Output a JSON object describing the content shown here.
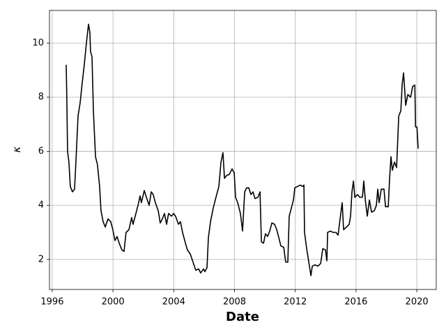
{
  "chart_data": {
    "type": "line",
    "xlabel": "Date",
    "ylabel": "κ",
    "color": "#000000",
    "grid": true,
    "xlim": [
      1995.82,
      2021.28
    ],
    "xticks": [
      1996,
      2000,
      2004,
      2008,
      2012,
      2016,
      2020
    ],
    "ylim": [
      0.89,
      11.21
    ],
    "yticks": [
      2,
      4,
      6,
      8,
      10
    ],
    "x": [
      1996.92,
      1996.96,
      1997.01,
      1997.1,
      1997.19,
      1997.33,
      1997.47,
      1997.56,
      1997.7,
      1997.84,
      1997.97,
      1998.11,
      1998.25,
      1998.39,
      1998.48,
      1998.52,
      1998.62,
      1998.71,
      1998.85,
      1998.98,
      1999.12,
      1999.21,
      1999.35,
      1999.49,
      1999.67,
      1999.85,
      1999.99,
      2000.13,
      2000.27,
      2000.41,
      2000.59,
      2000.73,
      2000.86,
      2001.05,
      2001.23,
      2001.32,
      2001.51,
      2001.69,
      2001.78,
      2001.87,
      2002.06,
      2002.2,
      2002.38,
      2002.52,
      2002.65,
      2002.79,
      2002.98,
      2003.11,
      2003.25,
      2003.39,
      2003.53,
      2003.66,
      2003.85,
      2003.99,
      2004.12,
      2004.31,
      2004.44,
      2004.58,
      2004.77,
      2004.9,
      2005.09,
      2005.27,
      2005.45,
      2005.64,
      2005.77,
      2005.96,
      2006.05,
      2006.19,
      2006.28,
      2006.42,
      2006.6,
      2006.78,
      2006.97,
      2007.11,
      2007.24,
      2007.34,
      2007.47,
      2007.66,
      2007.84,
      2007.98,
      2008.07,
      2008.21,
      2008.39,
      2008.53,
      2008.67,
      2008.8,
      2008.94,
      2009.08,
      2009.22,
      2009.35,
      2009.54,
      2009.68,
      2009.77,
      2009.91,
      2010.04,
      2010.18,
      2010.32,
      2010.46,
      2010.64,
      2010.78,
      2010.92,
      2011.05,
      2011.24,
      2011.37,
      2011.51,
      2011.6,
      2011.74,
      2011.88,
      2011.97,
      2012.15,
      2012.34,
      2012.48,
      2012.57,
      2012.61,
      2012.75,
      2012.89,
      2013.03,
      2013.12,
      2013.3,
      2013.49,
      2013.67,
      2013.81,
      2013.99,
      2014.08,
      2014.13,
      2014.31,
      2014.49,
      2014.68,
      2014.82,
      2014.95,
      2015.09,
      2015.18,
      2015.37,
      2015.55,
      2015.64,
      2015.73,
      2015.83,
      2015.92,
      2016.1,
      2016.24,
      2016.42,
      2016.51,
      2016.61,
      2016.74,
      2016.88,
      2017.02,
      2017.2,
      2017.34,
      2017.43,
      2017.52,
      2017.66,
      2017.84,
      2017.94,
      2018.12,
      2018.21,
      2018.3,
      2018.39,
      2018.53,
      2018.67,
      2018.81,
      2018.95,
      2019.04,
      2019.13,
      2019.27,
      2019.41,
      2019.59,
      2019.73,
      2019.87,
      2019.92,
      2020.01,
      2020.09
    ],
    "values": [
      9.2,
      8.0,
      6.0,
      5.6,
      4.7,
      4.5,
      4.6,
      5.6,
      7.3,
      7.8,
      8.5,
      9.2,
      10.0,
      10.7,
      10.4,
      9.7,
      9.5,
      7.5,
      5.8,
      5.5,
      4.7,
      3.8,
      3.4,
      3.2,
      3.5,
      3.4,
      3.1,
      2.7,
      2.85,
      2.6,
      2.35,
      2.3,
      3.0,
      3.1,
      3.55,
      3.3,
      3.7,
      4.1,
      4.35,
      4.1,
      4.55,
      4.3,
      4.0,
      4.5,
      4.4,
      4.1,
      3.8,
      3.35,
      3.5,
      3.7,
      3.3,
      3.7,
      3.6,
      3.7,
      3.6,
      3.3,
      3.4,
      3.0,
      2.6,
      2.35,
      2.2,
      1.9,
      1.6,
      1.65,
      1.5,
      1.65,
      1.55,
      1.7,
      2.8,
      3.4,
      3.9,
      4.3,
      4.7,
      5.6,
      5.95,
      5.0,
      5.1,
      5.15,
      5.35,
      5.2,
      4.3,
      4.1,
      3.7,
      3.05,
      4.5,
      4.65,
      4.65,
      4.4,
      4.5,
      4.25,
      4.3,
      4.5,
      2.65,
      2.6,
      2.95,
      2.85,
      3.05,
      3.35,
      3.3,
      3.1,
      2.8,
      2.5,
      2.45,
      1.9,
      1.9,
      3.6,
      3.9,
      4.2,
      4.65,
      4.7,
      4.75,
      4.7,
      4.75,
      3.0,
      2.4,
      1.9,
      1.4,
      1.75,
      1.8,
      1.75,
      1.85,
      2.4,
      2.35,
      1.95,
      3.0,
      3.05,
      3.0,
      3.0,
      2.9,
      3.5,
      4.1,
      3.1,
      3.2,
      3.3,
      3.6,
      4.5,
      4.9,
      4.3,
      4.4,
      4.3,
      4.3,
      4.9,
      4.2,
      3.6,
      4.2,
      3.75,
      3.8,
      4.0,
      4.6,
      4.1,
      4.6,
      4.6,
      3.95,
      3.95,
      5.0,
      5.8,
      5.3,
      5.6,
      5.4,
      7.3,
      7.5,
      8.5,
      8.9,
      7.7,
      8.1,
      8.0,
      8.4,
      8.45,
      6.9,
      6.9,
      6.1
    ]
  }
}
